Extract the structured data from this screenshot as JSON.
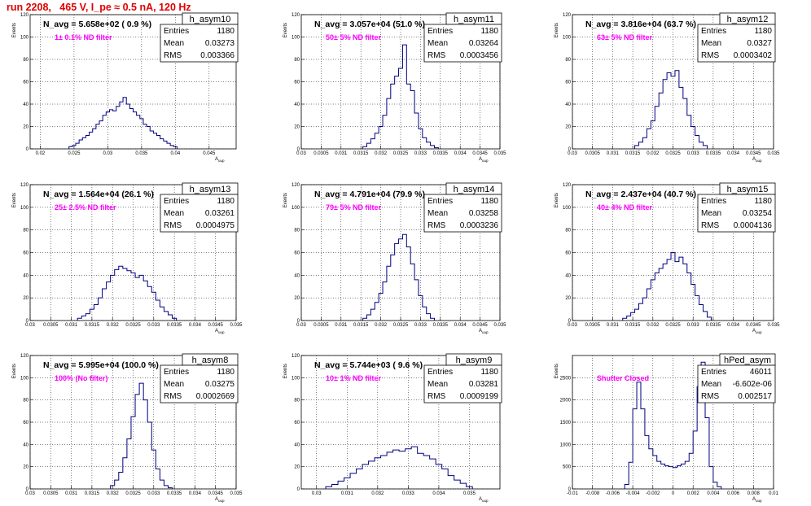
{
  "page": {
    "title": "run 2208,   465 V, I_pe ≈ 0.5 nA, 120 Hz"
  },
  "chart_data": [
    {
      "type": "bar",
      "name": "h_asym10",
      "annotation": "N_avg = 5.658e+02 ( 0.9 %)",
      "filter_label": "1± 0.1% ND filter",
      "stats": {
        "entries": "1180",
        "mean": "0.03273",
        "rms": "0.003366"
      },
      "ylabel": "Events",
      "xlabel": "A_uup",
      "xlim": [
        0.0185,
        0.049
      ],
      "ylim": [
        0,
        120
      ],
      "xticks": [
        "0.02",
        "0.025",
        "0.03",
        "0.035",
        "0.04",
        "0.045"
      ],
      "yticks": [
        "0",
        "20",
        "40",
        "60",
        "80",
        "100",
        "120"
      ],
      "x": [
        0.0245,
        0.025,
        0.0255,
        0.026,
        0.0265,
        0.027,
        0.0275,
        0.028,
        0.0285,
        0.029,
        0.0295,
        0.03,
        0.0305,
        0.031,
        0.0315,
        0.032,
        0.0325,
        0.033,
        0.0335,
        0.034,
        0.0345,
        0.035,
        0.0355,
        0.036,
        0.0365,
        0.037,
        0.0375,
        0.038,
        0.0385,
        0.039,
        0.0395,
        0.04
      ],
      "values": [
        2,
        3,
        5,
        8,
        10,
        12,
        15,
        18,
        22,
        25,
        30,
        33,
        35,
        34,
        38,
        42,
        46,
        40,
        36,
        33,
        30,
        27,
        22,
        20,
        16,
        14,
        12,
        9,
        7,
        5,
        3,
        2
      ]
    },
    {
      "type": "bar",
      "name": "h_asym11",
      "annotation": "N_avg = 3.057e+04 (51.0 %)",
      "filter_label": "50± 5% ND filter",
      "stats": {
        "entries": "1180",
        "mean": "0.03264",
        "rms": "0.0003456"
      },
      "ylabel": "Events",
      "xlabel": "A_uup",
      "xlim": [
        0.03,
        0.035
      ],
      "ylim": [
        0,
        120
      ],
      "xticks": [
        "0.03",
        "0.0305",
        "0.031",
        "0.0315",
        "0.032",
        "0.0325",
        "0.033",
        "0.0335",
        "0.034",
        "0.0345",
        "0.035"
      ],
      "yticks": [
        "0",
        "20",
        "40",
        "60",
        "80",
        "100",
        "120"
      ],
      "x": [
        0.0316,
        0.0317,
        0.0318,
        0.0319,
        0.032,
        0.0321,
        0.0322,
        0.0323,
        0.0324,
        0.0325,
        0.0326,
        0.0327,
        0.0328,
        0.0329,
        0.033,
        0.0331,
        0.0332,
        0.0333,
        0.0334
      ],
      "values": [
        2,
        5,
        9,
        14,
        20,
        30,
        45,
        58,
        65,
        72,
        93,
        58,
        52,
        32,
        18,
        10,
        6,
        3,
        1
      ]
    },
    {
      "type": "bar",
      "name": "h_asym12",
      "annotation": "N_avg = 3.816e+04 (63.7 %)",
      "filter_label": "63± 5% ND filter",
      "stats": {
        "entries": "1180",
        "mean": "0.0327",
        "rms": "0.0003402"
      },
      "ylabel": "Events",
      "xlabel": "A_uup",
      "xlim": [
        0.03,
        0.035
      ],
      "ylim": [
        0,
        120
      ],
      "xticks": [
        "0.03",
        "0.0305",
        "0.031",
        "0.0315",
        "0.032",
        "0.0325",
        "0.033",
        "0.0335",
        "0.034",
        "0.0345",
        "0.035"
      ],
      "yticks": [
        "0",
        "20",
        "40",
        "60",
        "80",
        "100",
        "120"
      ],
      "x": [
        0.0316,
        0.0317,
        0.0318,
        0.0319,
        0.032,
        0.0321,
        0.0322,
        0.0323,
        0.0324,
        0.0325,
        0.0326,
        0.0327,
        0.0328,
        0.0329,
        0.033,
        0.0331,
        0.0332,
        0.0333
      ],
      "values": [
        3,
        6,
        10,
        18,
        25,
        38,
        50,
        62,
        68,
        65,
        70,
        55,
        45,
        30,
        20,
        12,
        6,
        3
      ]
    },
    {
      "type": "bar",
      "name": "h_asym13",
      "annotation": "N_avg = 1.564e+04 (26.1 %)",
      "filter_label": "25± 2.5% ND filter",
      "stats": {
        "entries": "1180",
        "mean": "0.03261",
        "rms": "0.0004975"
      },
      "ylabel": "Events",
      "xlabel": "A_uup",
      "xlim": [
        0.03,
        0.035
      ],
      "ylim": [
        0,
        120
      ],
      "xticks": [
        "0.03",
        "0.0305",
        "0.031",
        "0.0315",
        "0.032",
        "0.0325",
        "0.033",
        "0.0335",
        "0.034",
        "0.0345",
        "0.035"
      ],
      "yticks": [
        "0",
        "20",
        "40",
        "60",
        "80",
        "100",
        "120"
      ],
      "x": [
        0.0312,
        0.0313,
        0.0314,
        0.0315,
        0.0316,
        0.0317,
        0.0318,
        0.0319,
        0.032,
        0.0321,
        0.0322,
        0.0323,
        0.0324,
        0.0325,
        0.0326,
        0.0327,
        0.0328,
        0.0329,
        0.033,
        0.0331,
        0.0332,
        0.0333,
        0.0334,
        0.0335
      ],
      "values": [
        2,
        4,
        6,
        10,
        14,
        20,
        28,
        34,
        40,
        45,
        48,
        46,
        44,
        42,
        38,
        40,
        35,
        30,
        25,
        18,
        12,
        8,
        5,
        2
      ]
    },
    {
      "type": "bar",
      "name": "h_asym14",
      "annotation": "N_avg = 4.791e+04 (79.9 %)",
      "filter_label": "79± 5% ND filter",
      "stats": {
        "entries": "1180",
        "mean": "0.03258",
        "rms": "0.0003236"
      },
      "ylabel": "Events",
      "xlabel": "A_uup",
      "xlim": [
        0.03,
        0.035
      ],
      "ylim": [
        0,
        120
      ],
      "xticks": [
        "0.03",
        "0.0305",
        "0.031",
        "0.0315",
        "0.032",
        "0.0325",
        "0.033",
        "0.0335",
        "0.034",
        "0.0345",
        "0.035"
      ],
      "yticks": [
        "0",
        "20",
        "40",
        "60",
        "80",
        "100",
        "120"
      ],
      "x": [
        0.0316,
        0.0317,
        0.0318,
        0.0319,
        0.032,
        0.0321,
        0.0322,
        0.0323,
        0.0324,
        0.0325,
        0.0326,
        0.0327,
        0.0328,
        0.0329,
        0.033,
        0.0331,
        0.0332,
        0.0333
      ],
      "values": [
        2,
        5,
        10,
        16,
        24,
        34,
        48,
        58,
        68,
        72,
        76,
        65,
        50,
        36,
        22,
        12,
        6,
        2
      ]
    },
    {
      "type": "bar",
      "name": "h_asym15",
      "annotation": "N_avg = 2.437e+04 (40.7 %)",
      "filter_label": "40± 4% ND filter",
      "stats": {
        "entries": "1180",
        "mean": "0.03254",
        "rms": "0.0004136"
      },
      "ylabel": "Events",
      "xlabel": "A_uup",
      "xlim": [
        0.03,
        0.035
      ],
      "ylim": [
        0,
        120
      ],
      "xticks": [
        "0.03",
        "0.0305",
        "0.031",
        "0.0315",
        "0.032",
        "0.0325",
        "0.033",
        "0.0335",
        "0.034",
        "0.0345",
        "0.035"
      ],
      "yticks": [
        "0",
        "20",
        "40",
        "60",
        "80",
        "100",
        "120"
      ],
      "x": [
        0.0313,
        0.0314,
        0.0315,
        0.0316,
        0.0317,
        0.0318,
        0.0319,
        0.032,
        0.0321,
        0.0322,
        0.0323,
        0.0324,
        0.0325,
        0.0326,
        0.0327,
        0.0328,
        0.0329,
        0.033,
        0.0331,
        0.0332,
        0.0333,
        0.0334
      ],
      "values": [
        2,
        4,
        7,
        10,
        15,
        20,
        28,
        36,
        42,
        46,
        50,
        54,
        60,
        52,
        56,
        50,
        42,
        32,
        22,
        14,
        8,
        3
      ]
    },
    {
      "type": "bar",
      "name": "h_asym8",
      "annotation": "N_avg = 5.995e+04 (100.0 %)",
      "filter_label": "100% (No filter)",
      "stats": {
        "entries": "1180",
        "mean": "0.03275",
        "rms": "0.0002669"
      },
      "ylabel": "Events",
      "xlabel": "A_uup",
      "xlim": [
        0.03,
        0.035
      ],
      "ylim": [
        0,
        120
      ],
      "xticks": [
        "0.03",
        "0.0305",
        "0.031",
        "0.0315",
        "0.032",
        "0.0325",
        "0.033",
        "0.0335",
        "0.034",
        "0.0345",
        "0.035"
      ],
      "yticks": [
        "0",
        "20",
        "40",
        "60",
        "80",
        "100",
        "120"
      ],
      "x": [
        0.032,
        0.0321,
        0.0322,
        0.0323,
        0.0324,
        0.0325,
        0.0326,
        0.0327,
        0.0328,
        0.0329,
        0.033,
        0.0331,
        0.0332,
        0.0333,
        0.0334
      ],
      "values": [
        3,
        8,
        15,
        28,
        45,
        65,
        85,
        95,
        80,
        60,
        35,
        18,
        8,
        3,
        1
      ]
    },
    {
      "type": "bar",
      "name": "h_asym9",
      "annotation": "N_avg = 5.744e+03 ( 9.6 %)",
      "filter_label": "10± 1% ND filter",
      "stats": {
        "entries": "1180",
        "mean": "0.03281",
        "rms": "0.0009199"
      },
      "ylabel": "Events",
      "xlabel": "A_uup",
      "xlim": [
        0.0295,
        0.036
      ],
      "ylim": [
        0,
        120
      ],
      "xticks": [
        "0.03",
        "0.031",
        "0.032",
        "0.033",
        "0.034",
        "0.035"
      ],
      "yticks": [
        "0",
        "20",
        "40",
        "60",
        "80",
        "100",
        "120"
      ],
      "x": [
        0.0304,
        0.0306,
        0.0308,
        0.031,
        0.0312,
        0.0314,
        0.0316,
        0.0318,
        0.032,
        0.0322,
        0.0324,
        0.0326,
        0.0328,
        0.033,
        0.0332,
        0.0334,
        0.0336,
        0.0338,
        0.034,
        0.0342,
        0.0344,
        0.0346,
        0.0348,
        0.035
      ],
      "values": [
        2,
        4,
        7,
        10,
        14,
        18,
        22,
        25,
        28,
        30,
        33,
        35,
        34,
        36,
        38,
        32,
        30,
        27,
        22,
        18,
        12,
        8,
        5,
        2
      ]
    },
    {
      "type": "bar",
      "name": "hPed_asym",
      "annotation": "",
      "filter_label": "Shutter Closed",
      "stats": {
        "entries": "46011",
        "mean": "-6.602e-06",
        "rms": "0.002517"
      },
      "ylabel": "Events",
      "xlabel": "A_uup",
      "xlim": [
        -0.01,
        0.01
      ],
      "ylim": [
        0,
        3000
      ],
      "xticks": [
        "-0.01",
        "-0.008",
        "-0.006",
        "-0.004",
        "-0.002",
        "0",
        "0.002",
        "0.004",
        "0.006",
        "0.008",
        "0.01"
      ],
      "yticks": [
        "0",
        "500",
        "1000",
        "1500",
        "2000",
        "2500"
      ],
      "x": [
        -0.0046,
        -0.0042,
        -0.0038,
        -0.0034,
        -0.003,
        -0.0026,
        -0.0022,
        -0.0018,
        -0.0014,
        -0.001,
        -0.0006,
        -0.0002,
        0.0002,
        0.0006,
        0.001,
        0.0014,
        0.0018,
        0.0022,
        0.0026,
        0.003,
        0.0034,
        0.0038,
        0.0042,
        0.0046
      ],
      "values": [
        100,
        600,
        1800,
        2400,
        1800,
        1200,
        900,
        750,
        620,
        560,
        520,
        500,
        480,
        520,
        560,
        620,
        800,
        1300,
        2300,
        2850,
        1600,
        500,
        150,
        50
      ]
    }
  ]
}
